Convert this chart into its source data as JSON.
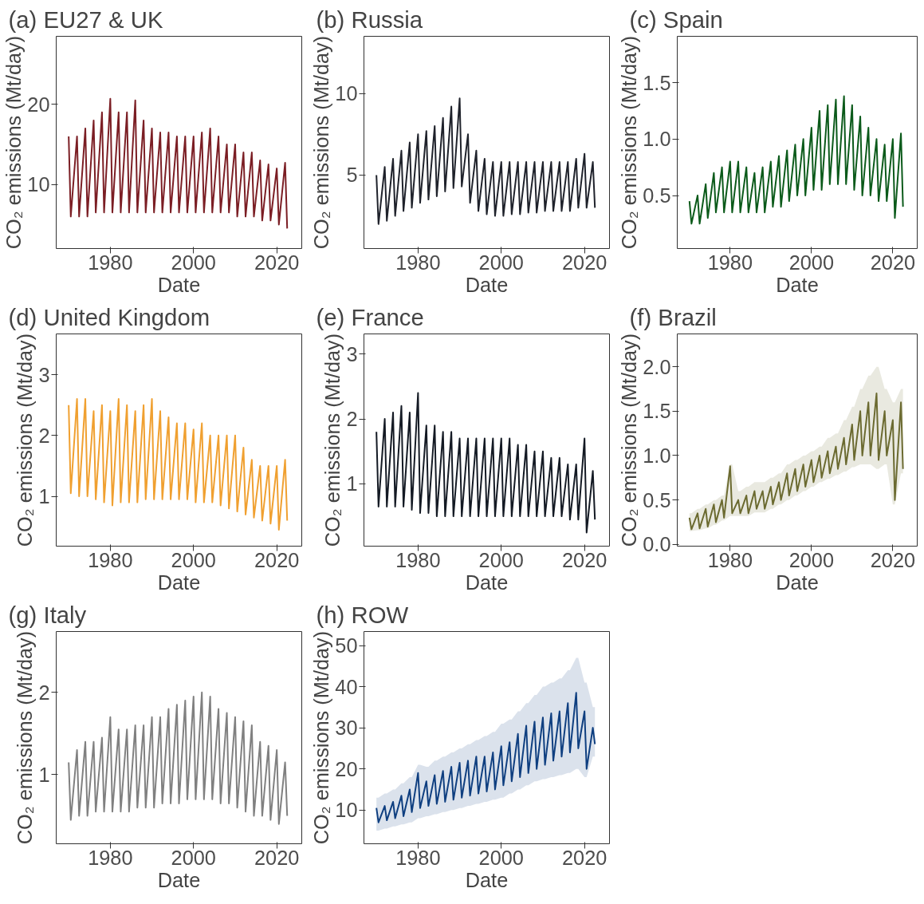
{
  "chart_data": [
    {
      "type": "line",
      "title": "(a) EU27 & UK",
      "xlabel": "Date",
      "ylabel": "CO₂ emissions (Mt/day)",
      "xlim": [
        1967,
        2026
      ],
      "xticks": [
        1980,
        2000,
        2020
      ],
      "ylim": [
        2,
        28.5
      ],
      "yticks": [
        10,
        20
      ],
      "x": [
        1970,
        1970.5,
        1972,
        1972.5,
        1974,
        1974.5,
        1976,
        1976.5,
        1978,
        1978.5,
        1980,
        1980.5,
        1982,
        1982.5,
        1984,
        1984.5,
        1986,
        1986.5,
        1988,
        1988.5,
        1990,
        1990.5,
        1992,
        1992.5,
        1994,
        1994.5,
        1996,
        1996.5,
        1998,
        1998.5,
        2000,
        2000.5,
        2002,
        2002.5,
        2004,
        2004.5,
        2006,
        2006.5,
        2008,
        2008.5,
        2010,
        2010.5,
        2012,
        2012.5,
        2014,
        2014.5,
        2016,
        2016.5,
        2018,
        2018.5,
        2020,
        2020.5,
        2022,
        2022.5
      ],
      "series": [
        {
          "color": "#7b1e24",
          "values": [
            16,
            6,
            16,
            6,
            17,
            6,
            18,
            6.5,
            19,
            6.5,
            20.7,
            6.5,
            19,
            6.5,
            19,
            6.5,
            20.5,
            6.5,
            18,
            6.5,
            17,
            6.5,
            16.5,
            6.5,
            16.5,
            6.5,
            16,
            6.5,
            16,
            6.5,
            16,
            6.5,
            16.5,
            6.5,
            17,
            6.5,
            16,
            6.5,
            15,
            6.5,
            15,
            6,
            14,
            6,
            14,
            6,
            13,
            5.5,
            12.5,
            5.5,
            12,
            5,
            12.7,
            4.5
          ]
        }
      ]
    },
    {
      "type": "line",
      "title": "(b) Russia",
      "xlabel": "Date",
      "ylabel": "CO₂ emissions (Mt/day)",
      "xlim": [
        1967,
        2026
      ],
      "xticks": [
        1980,
        2000,
        2020
      ],
      "ylim": [
        0.5,
        13.5
      ],
      "yticks": [
        5,
        10
      ],
      "x": [
        1970,
        1970.5,
        1972,
        1972.5,
        1974,
        1974.5,
        1976,
        1976.5,
        1978,
        1978.5,
        1980,
        1980.5,
        1982,
        1982.5,
        1984,
        1984.5,
        1986,
        1986.5,
        1988,
        1988.5,
        1990,
        1990.5,
        1992,
        1992.5,
        1994,
        1994.5,
        1996,
        1996.5,
        1998,
        1998.5,
        2000,
        2000.5,
        2002,
        2002.5,
        2004,
        2004.5,
        2006,
        2006.5,
        2008,
        2008.5,
        2010,
        2010.5,
        2012,
        2012.5,
        2014,
        2014.5,
        2016,
        2016.5,
        2018,
        2018.5,
        2020,
        2020.5,
        2022,
        2022.5
      ],
      "series": [
        {
          "color": "#1f222b",
          "values": [
            5,
            2,
            5.5,
            2.2,
            6,
            2.5,
            6.5,
            2.8,
            7,
            3,
            7.5,
            3.3,
            7.7,
            3.5,
            8,
            3.7,
            8.5,
            4,
            9.2,
            4.2,
            9.7,
            4.3,
            7.5,
            3.3,
            6.5,
            2.8,
            6,
            2.6,
            5.8,
            2.5,
            5.8,
            2.5,
            5.8,
            2.6,
            5.8,
            2.6,
            5.8,
            2.7,
            5.8,
            2.7,
            5.8,
            2.8,
            5.8,
            2.8,
            5.8,
            2.8,
            5.8,
            2.8,
            6,
            3,
            6.3,
            3,
            5.8,
            3
          ]
        }
      ]
    },
    {
      "type": "line",
      "title": "(c) Spain",
      "xlabel": "Date",
      "ylabel": "CO₂ emissions (Mt/day)",
      "xlim": [
        1967,
        2026
      ],
      "xticks": [
        1980,
        2000,
        2020
      ],
      "ylim": [
        0.03,
        1.91
      ],
      "yticks": [
        {
          "value": 0.5,
          "label": "0.5"
        },
        {
          "value": 1.0,
          "label": "1.0"
        },
        {
          "value": 1.5,
          "label": "1.5"
        }
      ],
      "x": [
        1970,
        1970.5,
        1972,
        1972.5,
        1974,
        1974.5,
        1976,
        1976.5,
        1978,
        1978.5,
        1980,
        1980.5,
        1982,
        1982.5,
        1984,
        1984.5,
        1986,
        1986.5,
        1988,
        1988.5,
        1990,
        1990.5,
        1992,
        1992.5,
        1994,
        1994.5,
        1996,
        1996.5,
        1998,
        1998.5,
        2000,
        2000.5,
        2002,
        2002.5,
        2004,
        2004.5,
        2006,
        2006.5,
        2008,
        2008.5,
        2010,
        2010.5,
        2012,
        2012.5,
        2014,
        2014.5,
        2016,
        2016.5,
        2018,
        2018.5,
        2020,
        2020.5,
        2022,
        2022.5
      ],
      "series": [
        {
          "color": "#0b5a1a",
          "values": [
            0.45,
            0.25,
            0.5,
            0.25,
            0.6,
            0.3,
            0.7,
            0.35,
            0.75,
            0.35,
            0.8,
            0.35,
            0.8,
            0.35,
            0.75,
            0.35,
            0.7,
            0.35,
            0.75,
            0.35,
            0.8,
            0.4,
            0.85,
            0.4,
            0.9,
            0.45,
            0.95,
            0.5,
            1.0,
            0.5,
            1.1,
            0.55,
            1.25,
            0.55,
            1.3,
            0.6,
            1.35,
            0.6,
            1.38,
            0.6,
            1.3,
            0.55,
            1.2,
            0.5,
            1.1,
            0.5,
            1.0,
            0.45,
            0.95,
            0.45,
            1.0,
            0.3,
            1.05,
            0.4
          ]
        }
      ]
    },
    {
      "type": "line",
      "title": "(d) United Kingdom",
      "xlabel": "Date",
      "ylabel": "CO₂ emissions (Mt/day)",
      "xlim": [
        1967,
        2026
      ],
      "xticks": [
        1980,
        2000,
        2020
      ],
      "ylim": [
        0.18,
        3.67
      ],
      "yticks": [
        1,
        2,
        3
      ],
      "x": [
        1970,
        1970.5,
        1972,
        1972.5,
        1974,
        1974.5,
        1976,
        1976.5,
        1978,
        1978.5,
        1980,
        1980.5,
        1982,
        1982.5,
        1984,
        1984.5,
        1986,
        1986.5,
        1988,
        1988.5,
        1990,
        1990.5,
        1992,
        1992.5,
        1994,
        1994.5,
        1996,
        1996.5,
        1998,
        1998.5,
        2000,
        2000.5,
        2002,
        2002.5,
        2004,
        2004.5,
        2006,
        2006.5,
        2008,
        2008.5,
        2010,
        2010.5,
        2012,
        2012.5,
        2014,
        2014.5,
        2016,
        2016.5,
        2018,
        2018.5,
        2020,
        2020.5,
        2022,
        2022.5
      ],
      "series": [
        {
          "color": "#f0a030",
          "values": [
            2.5,
            1.05,
            2.6,
            1.0,
            2.6,
            1.0,
            2.4,
            0.95,
            2.5,
            0.9,
            2.4,
            0.85,
            2.6,
            0.9,
            2.5,
            0.9,
            2.4,
            0.9,
            2.5,
            0.95,
            2.6,
            0.95,
            2.4,
            0.95,
            2.3,
            0.95,
            2.2,
            0.95,
            2.2,
            0.95,
            2.1,
            0.9,
            2.2,
            0.9,
            2.0,
            0.9,
            2.0,
            0.85,
            2.0,
            0.8,
            2.0,
            0.75,
            1.8,
            0.7,
            1.6,
            0.65,
            1.5,
            0.6,
            1.5,
            0.55,
            1.5,
            0.45,
            1.6,
            0.6
          ]
        }
      ]
    },
    {
      "type": "line",
      "title": "(e) France",
      "xlabel": "Date",
      "ylabel": "CO₂ emissions (Mt/day)",
      "xlim": [
        1967,
        2026
      ],
      "xticks": [
        1980,
        2000,
        2020
      ],
      "ylim": [
        0.04,
        3.31
      ],
      "yticks": [
        1,
        2,
        3
      ],
      "x": [
        1970,
        1970.5,
        1972,
        1972.5,
        1974,
        1974.5,
        1976,
        1976.5,
        1978,
        1978.5,
        1980,
        1980.5,
        1982,
        1982.5,
        1984,
        1984.5,
        1986,
        1986.5,
        1988,
        1988.5,
        1990,
        1990.5,
        1992,
        1992.5,
        1994,
        1994.5,
        1996,
        1996.5,
        1998,
        1998.5,
        2000,
        2000.5,
        2002,
        2002.5,
        2004,
        2004.5,
        2006,
        2006.5,
        2008,
        2008.5,
        2010,
        2010.5,
        2012,
        2012.5,
        2014,
        2014.5,
        2016,
        2016.5,
        2018,
        2018.5,
        2020,
        2020.5,
        2022,
        2022.5
      ],
      "series": [
        {
          "color": "#141a24",
          "values": [
            1.8,
            0.65,
            2.0,
            0.65,
            2.1,
            0.65,
            2.2,
            0.65,
            2.1,
            0.6,
            2.4,
            0.55,
            1.9,
            0.55,
            1.9,
            0.5,
            1.8,
            0.5,
            1.8,
            0.5,
            1.7,
            0.5,
            1.7,
            0.5,
            1.7,
            0.5,
            1.7,
            0.5,
            1.7,
            0.5,
            1.7,
            0.5,
            1.7,
            0.5,
            1.6,
            0.5,
            1.6,
            0.5,
            1.5,
            0.5,
            1.5,
            0.5,
            1.4,
            0.5,
            1.4,
            0.5,
            1.3,
            0.45,
            1.3,
            0.45,
            1.7,
            0.25,
            1.2,
            0.45
          ]
        }
      ]
    },
    {
      "type": "line",
      "title": "(f) Brazil",
      "xlabel": "Date",
      "ylabel": "CO₂ emissions (Mt/day)",
      "xlim": [
        1967,
        2026
      ],
      "xticks": [
        1980,
        2000,
        2020
      ],
      "ylim": [
        -0.02,
        2.37
      ],
      "yticks": [
        {
          "value": 0,
          "label": "0.0"
        },
        {
          "value": 0.5,
          "label": "0.5"
        },
        {
          "value": 1.0,
          "label": "1.0"
        },
        {
          "value": 1.5,
          "label": "1.5"
        },
        {
          "value": 2.0,
          "label": "2.0"
        }
      ],
      "x": [
        1970,
        1970.5,
        1972,
        1972.5,
        1974,
        1974.5,
        1976,
        1976.5,
        1978,
        1978.5,
        1980,
        1980.5,
        1982,
        1982.5,
        1984,
        1984.5,
        1986,
        1986.5,
        1988,
        1988.5,
        1990,
        1990.5,
        1992,
        1992.5,
        1994,
        1994.5,
        1996,
        1996.5,
        1998,
        1998.5,
        2000,
        2000.5,
        2002,
        2002.5,
        2004,
        2004.5,
        2006,
        2006.5,
        2008,
        2008.5,
        2010,
        2010.5,
        2012,
        2012.5,
        2014,
        2014.5,
        2016,
        2016.5,
        2018,
        2018.5,
        2020,
        2020.5,
        2022,
        2022.5
      ],
      "series": [
        {
          "color": "#6b6a30",
          "values": [
            0.3,
            0.17,
            0.35,
            0.18,
            0.4,
            0.2,
            0.45,
            0.25,
            0.5,
            0.3,
            0.88,
            0.35,
            0.5,
            0.35,
            0.55,
            0.35,
            0.6,
            0.4,
            0.6,
            0.4,
            0.65,
            0.45,
            0.7,
            0.5,
            0.8,
            0.55,
            0.85,
            0.6,
            0.9,
            0.65,
            0.95,
            0.7,
            1.0,
            0.75,
            1.05,
            0.8,
            1.1,
            0.85,
            1.2,
            0.9,
            1.35,
            0.95,
            1.5,
            1.0,
            1.6,
            1.0,
            1.7,
            0.95,
            1.5,
            1.0,
            1.4,
            0.5,
            1.6,
            0.85
          ],
          "upper": [
            0.35,
            0.35,
            0.4,
            0.4,
            0.45,
            0.45,
            0.5,
            0.5,
            0.55,
            0.55,
            0.9,
            0.9,
            0.6,
            0.6,
            0.65,
            0.65,
            0.7,
            0.7,
            0.7,
            0.7,
            0.75,
            0.75,
            0.8,
            0.8,
            0.9,
            0.9,
            0.95,
            0.95,
            1.0,
            1.0,
            1.05,
            1.05,
            1.1,
            1.1,
            1.2,
            1.2,
            1.25,
            1.25,
            1.4,
            1.4,
            1.55,
            1.55,
            1.75,
            1.75,
            1.9,
            1.9,
            2.0,
            2.0,
            1.75,
            1.75,
            1.6,
            1.6,
            1.75,
            1.75
          ],
          "lower": [
            0.15,
            0.15,
            0.16,
            0.16,
            0.18,
            0.18,
            0.22,
            0.22,
            0.27,
            0.27,
            0.32,
            0.32,
            0.32,
            0.32,
            0.32,
            0.32,
            0.36,
            0.36,
            0.36,
            0.36,
            0.4,
            0.4,
            0.45,
            0.45,
            0.5,
            0.5,
            0.55,
            0.55,
            0.6,
            0.6,
            0.65,
            0.65,
            0.7,
            0.7,
            0.74,
            0.74,
            0.78,
            0.78,
            0.82,
            0.82,
            0.87,
            0.87,
            0.9,
            0.9,
            0.9,
            0.9,
            0.85,
            0.85,
            0.9,
            0.9,
            0.45,
            0.45,
            0.8,
            0.8
          ]
        }
      ]
    },
    {
      "type": "line",
      "title": "(g) Italy",
      "xlabel": "Date",
      "ylabel": "CO₂ emissions (Mt/day)",
      "xlim": [
        1967,
        2026
      ],
      "xticks": [
        1980,
        2000,
        2020
      ],
      "ylim": [
        0.16,
        2.74
      ],
      "yticks": [
        1,
        2
      ],
      "x": [
        1970,
        1970.5,
        1972,
        1972.5,
        1974,
        1974.5,
        1976,
        1976.5,
        1978,
        1978.5,
        1980,
        1980.5,
        1982,
        1982.5,
        1984,
        1984.5,
        1986,
        1986.5,
        1988,
        1988.5,
        1990,
        1990.5,
        1992,
        1992.5,
        1994,
        1994.5,
        1996,
        1996.5,
        1998,
        1998.5,
        2000,
        2000.5,
        2002,
        2002.5,
        2004,
        2004.5,
        2006,
        2006.5,
        2008,
        2008.5,
        2010,
        2010.5,
        2012,
        2012.5,
        2014,
        2014.5,
        2016,
        2016.5,
        2018,
        2018.5,
        2020,
        2020.5,
        2022,
        2022.5
      ],
      "series": [
        {
          "color": "#808080",
          "values": [
            1.15,
            0.45,
            1.3,
            0.5,
            1.4,
            0.5,
            1.4,
            0.55,
            1.45,
            0.55,
            1.7,
            0.55,
            1.55,
            0.55,
            1.55,
            0.55,
            1.6,
            0.6,
            1.6,
            0.6,
            1.7,
            0.6,
            1.7,
            0.65,
            1.8,
            0.65,
            1.85,
            0.65,
            1.9,
            0.7,
            1.95,
            0.7,
            2.0,
            0.7,
            1.95,
            0.7,
            1.8,
            0.65,
            1.75,
            0.65,
            1.7,
            0.6,
            1.65,
            0.55,
            1.6,
            0.5,
            1.4,
            0.5,
            1.35,
            0.45,
            1.3,
            0.4,
            1.15,
            0.5
          ]
        }
      ]
    },
    {
      "type": "line",
      "title": "(h) ROW",
      "xlabel": "Date",
      "ylabel": "CO₂ emissions (Mt/day)",
      "xlim": [
        1967,
        2026
      ],
      "xticks": [
        1980,
        2000,
        2020
      ],
      "ylim": [
        1.8,
        53.4
      ],
      "yticks": [
        10,
        20,
        30,
        40,
        50
      ],
      "x": [
        1970,
        1970.5,
        1972,
        1972.5,
        1974,
        1974.5,
        1976,
        1976.5,
        1978,
        1978.5,
        1980,
        1980.5,
        1982,
        1982.5,
        1984,
        1984.5,
        1986,
        1986.5,
        1988,
        1988.5,
        1990,
        1990.5,
        1992,
        1992.5,
        1994,
        1994.5,
        1996,
        1996.5,
        1998,
        1998.5,
        2000,
        2000.5,
        2002,
        2002.5,
        2004,
        2004.5,
        2006,
        2006.5,
        2008,
        2008.5,
        2010,
        2010.5,
        2012,
        2012.5,
        2014,
        2014.5,
        2016,
        2016.5,
        2018,
        2018.5,
        2020,
        2020.5,
        2022,
        2022.5
      ],
      "series": [
        {
          "color": "#0f3f80",
          "values": [
            10.5,
            7,
            11,
            7.5,
            12,
            8,
            13.5,
            8.5,
            15,
            9.5,
            19,
            10.5,
            17,
            11,
            18.5,
            11.5,
            19.5,
            12,
            20.5,
            12.5,
            21.5,
            13,
            22,
            13.5,
            23,
            14,
            23,
            14.5,
            24,
            15,
            25.5,
            16,
            26.5,
            17,
            28.5,
            18,
            30.5,
            19,
            31.5,
            20,
            32.5,
            21,
            33.5,
            22,
            34,
            23,
            36,
            24,
            38.5,
            25,
            34,
            20,
            30,
            26
          ],
          "upper": [
            13,
            13,
            14,
            14,
            15,
            15,
            16.5,
            16.5,
            18,
            18,
            21,
            21,
            20.5,
            20.5,
            22,
            22,
            23,
            23,
            24,
            24,
            25,
            25,
            26,
            26,
            27,
            27,
            28,
            28,
            29,
            29,
            31,
            31,
            32,
            32,
            34,
            34,
            36,
            36,
            38,
            38,
            40,
            40,
            41,
            41,
            42,
            42,
            44,
            44,
            47,
            47,
            41,
            41,
            35,
            35
          ],
          "lower": [
            5,
            5,
            5.5,
            5.5,
            6,
            6,
            6.5,
            6.5,
            7,
            7,
            8,
            8,
            8.5,
            8.5,
            9,
            9,
            9.5,
            9.5,
            10,
            10,
            10.5,
            10.5,
            11,
            11,
            11.5,
            11.5,
            12,
            12,
            12.5,
            12.5,
            13,
            13,
            14,
            14,
            15,
            15,
            16,
            16,
            17,
            17,
            17.5,
            17.5,
            18,
            18,
            18.5,
            18.5,
            19,
            19,
            20,
            20,
            18,
            18,
            23,
            23
          ]
        }
      ]
    }
  ]
}
